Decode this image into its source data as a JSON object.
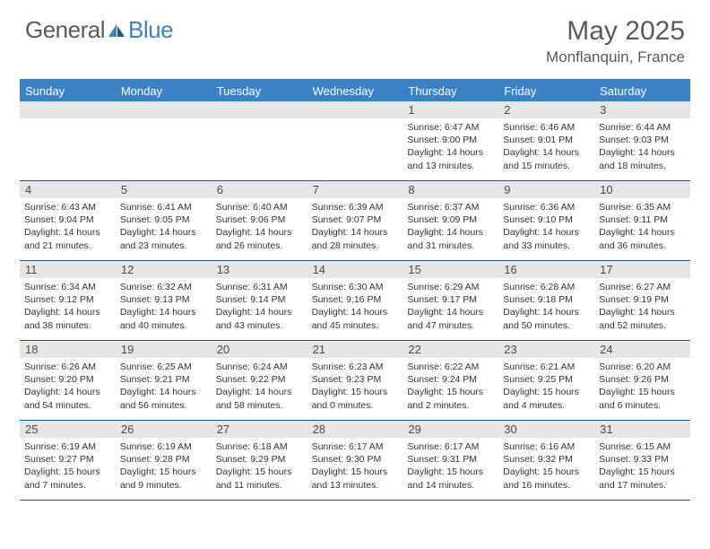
{
  "logo": {
    "general": "General",
    "blue": "Blue"
  },
  "title": "May 2025",
  "location": "Monflanquin, France",
  "colors": {
    "header_bg": "#3b82c4",
    "border": "#175a8c",
    "daynum_bg": "#e6e6e6",
    "text": "#333333",
    "title_text": "#5a5a5a"
  },
  "weekdays": [
    "Sunday",
    "Monday",
    "Tuesday",
    "Wednesday",
    "Thursday",
    "Friday",
    "Saturday"
  ],
  "weeks": [
    [
      {
        "n": "",
        "empty": true
      },
      {
        "n": "",
        "empty": true
      },
      {
        "n": "",
        "empty": true
      },
      {
        "n": "",
        "empty": true
      },
      {
        "n": "1",
        "sr": "6:47 AM",
        "ss": "9:00 PM",
        "dl": "14 hours and 13 minutes."
      },
      {
        "n": "2",
        "sr": "6:46 AM",
        "ss": "9:01 PM",
        "dl": "14 hours and 15 minutes."
      },
      {
        "n": "3",
        "sr": "6:44 AM",
        "ss": "9:03 PM",
        "dl": "14 hours and 18 minutes."
      }
    ],
    [
      {
        "n": "4",
        "sr": "6:43 AM",
        "ss": "9:04 PM",
        "dl": "14 hours and 21 minutes."
      },
      {
        "n": "5",
        "sr": "6:41 AM",
        "ss": "9:05 PM",
        "dl": "14 hours and 23 minutes."
      },
      {
        "n": "6",
        "sr": "6:40 AM",
        "ss": "9:06 PM",
        "dl": "14 hours and 26 minutes."
      },
      {
        "n": "7",
        "sr": "6:39 AM",
        "ss": "9:07 PM",
        "dl": "14 hours and 28 minutes."
      },
      {
        "n": "8",
        "sr": "6:37 AM",
        "ss": "9:09 PM",
        "dl": "14 hours and 31 minutes."
      },
      {
        "n": "9",
        "sr": "6:36 AM",
        "ss": "9:10 PM",
        "dl": "14 hours and 33 minutes."
      },
      {
        "n": "10",
        "sr": "6:35 AM",
        "ss": "9:11 PM",
        "dl": "14 hours and 36 minutes."
      }
    ],
    [
      {
        "n": "11",
        "sr": "6:34 AM",
        "ss": "9:12 PM",
        "dl": "14 hours and 38 minutes."
      },
      {
        "n": "12",
        "sr": "6:32 AM",
        "ss": "9:13 PM",
        "dl": "14 hours and 40 minutes."
      },
      {
        "n": "13",
        "sr": "6:31 AM",
        "ss": "9:14 PM",
        "dl": "14 hours and 43 minutes."
      },
      {
        "n": "14",
        "sr": "6:30 AM",
        "ss": "9:16 PM",
        "dl": "14 hours and 45 minutes."
      },
      {
        "n": "15",
        "sr": "6:29 AM",
        "ss": "9:17 PM",
        "dl": "14 hours and 47 minutes."
      },
      {
        "n": "16",
        "sr": "6:28 AM",
        "ss": "9:18 PM",
        "dl": "14 hours and 50 minutes."
      },
      {
        "n": "17",
        "sr": "6:27 AM",
        "ss": "9:19 PM",
        "dl": "14 hours and 52 minutes."
      }
    ],
    [
      {
        "n": "18",
        "sr": "6:26 AM",
        "ss": "9:20 PM",
        "dl": "14 hours and 54 minutes."
      },
      {
        "n": "19",
        "sr": "6:25 AM",
        "ss": "9:21 PM",
        "dl": "14 hours and 56 minutes."
      },
      {
        "n": "20",
        "sr": "6:24 AM",
        "ss": "9:22 PM",
        "dl": "14 hours and 58 minutes."
      },
      {
        "n": "21",
        "sr": "6:23 AM",
        "ss": "9:23 PM",
        "dl": "15 hours and 0 minutes."
      },
      {
        "n": "22",
        "sr": "6:22 AM",
        "ss": "9:24 PM",
        "dl": "15 hours and 2 minutes."
      },
      {
        "n": "23",
        "sr": "6:21 AM",
        "ss": "9:25 PM",
        "dl": "15 hours and 4 minutes."
      },
      {
        "n": "24",
        "sr": "6:20 AM",
        "ss": "9:26 PM",
        "dl": "15 hours and 6 minutes."
      }
    ],
    [
      {
        "n": "25",
        "sr": "6:19 AM",
        "ss": "9:27 PM",
        "dl": "15 hours and 7 minutes."
      },
      {
        "n": "26",
        "sr": "6:19 AM",
        "ss": "9:28 PM",
        "dl": "15 hours and 9 minutes."
      },
      {
        "n": "27",
        "sr": "6:18 AM",
        "ss": "9:29 PM",
        "dl": "15 hours and 11 minutes."
      },
      {
        "n": "28",
        "sr": "6:17 AM",
        "ss": "9:30 PM",
        "dl": "15 hours and 13 minutes."
      },
      {
        "n": "29",
        "sr": "6:17 AM",
        "ss": "9:31 PM",
        "dl": "15 hours and 14 minutes."
      },
      {
        "n": "30",
        "sr": "6:16 AM",
        "ss": "9:32 PM",
        "dl": "15 hours and 16 minutes."
      },
      {
        "n": "31",
        "sr": "6:15 AM",
        "ss": "9:33 PM",
        "dl": "15 hours and 17 minutes."
      }
    ]
  ],
  "labels": {
    "sunrise": "Sunrise: ",
    "sunset": "Sunset: ",
    "daylight": "Daylight: "
  }
}
